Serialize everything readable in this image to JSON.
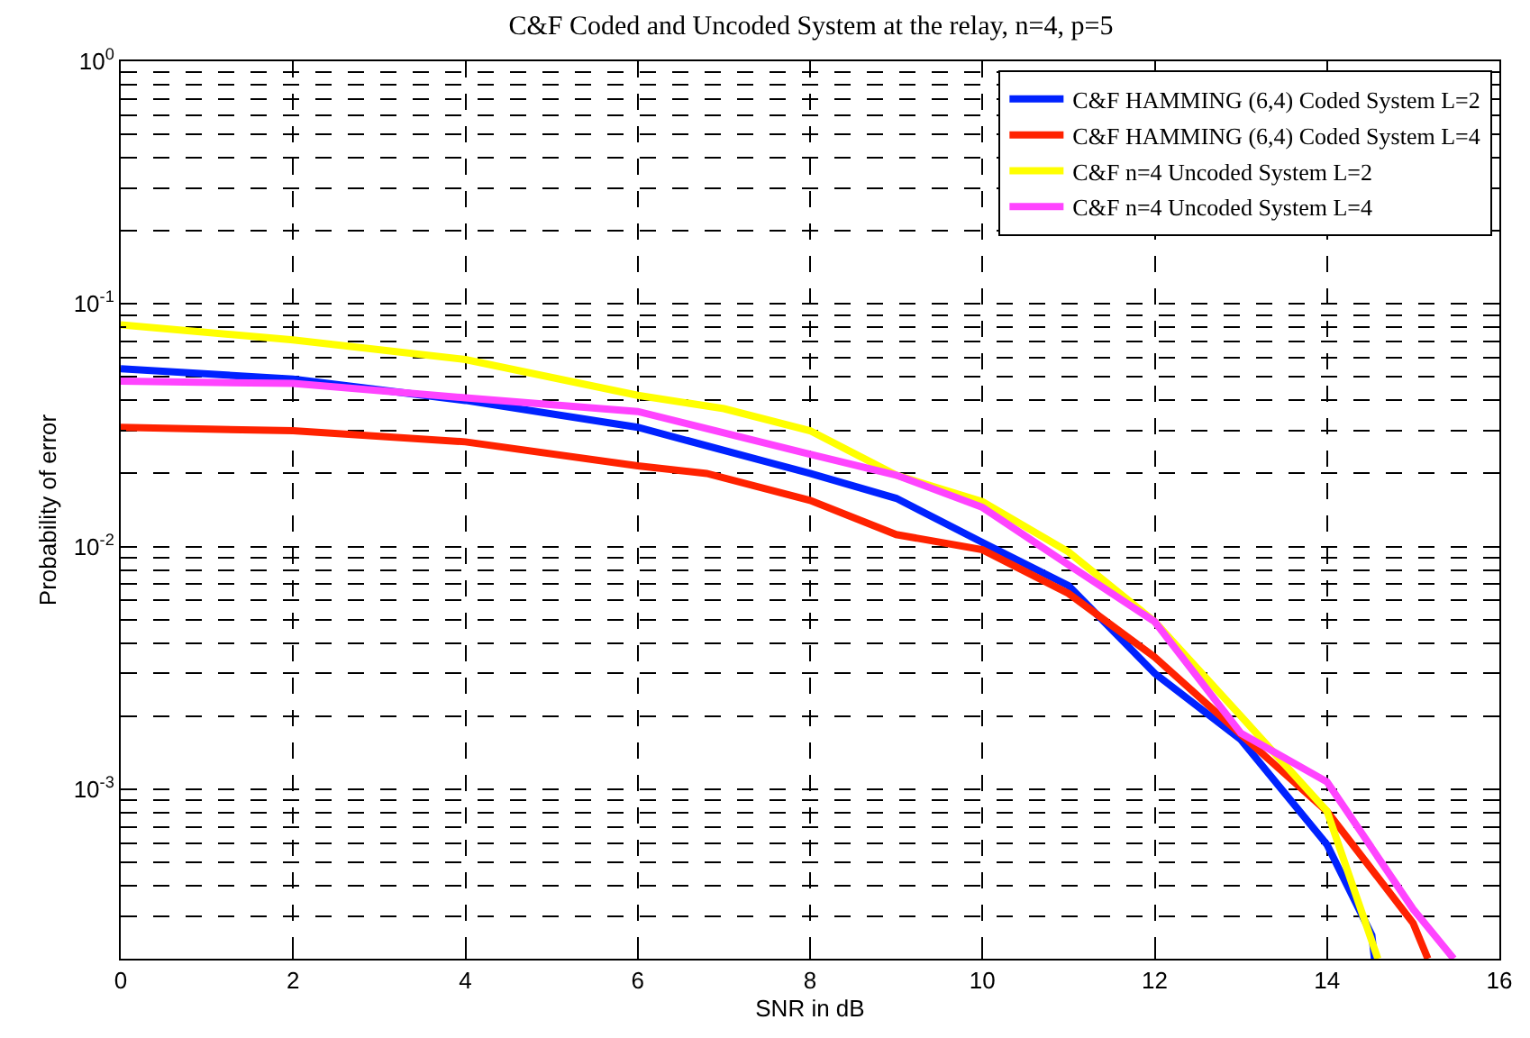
{
  "chart_data": {
    "type": "line",
    "title": "C&F Coded and Uncoded System at the relay, n=4, p=5",
    "xlabel": "SNR in dB",
    "ylabel": "Probability of error",
    "series": [
      {
        "name": "C&F HAMMING (6,4) Coded System L=2",
        "color": "#0022ff",
        "x": [
          0,
          2,
          4,
          6,
          8,
          9,
          10,
          11,
          12,
          13,
          14,
          14.52,
          14.55
        ],
        "values": [
          0.054,
          0.049,
          0.04,
          0.031,
          0.02,
          0.0158,
          0.0104,
          0.0069,
          0.003,
          0.0016,
          0.00059,
          0.00025,
          0.0002
        ]
      },
      {
        "name": "C&F HAMMING (6,4) Coded System L=4",
        "color": "#ff2200",
        "x": [
          0,
          2,
          4,
          6,
          6.8,
          8,
          9,
          10,
          11,
          12,
          13,
          14,
          15,
          15.17
        ],
        "values": [
          0.031,
          0.03,
          0.027,
          0.0215,
          0.02,
          0.0155,
          0.0112,
          0.0097,
          0.0064,
          0.0035,
          0.00168,
          0.00081,
          0.00028,
          0.0002
        ]
      },
      {
        "name": "C&F n=4 Uncoded System L=2",
        "color": "#ffff00",
        "x": [
          0,
          2,
          4,
          6,
          7,
          8,
          9,
          10,
          11,
          12,
          13,
          14,
          14.59
        ],
        "values": [
          0.082,
          0.071,
          0.059,
          0.042,
          0.037,
          0.03,
          0.0197,
          0.0153,
          0.0095,
          0.0049,
          0.002,
          0.00081,
          0.0002
        ]
      },
      {
        "name": "C&F n=4 Uncoded System L=4",
        "color": "#ff44ff",
        "x": [
          0,
          2,
          4,
          6,
          8,
          9,
          10,
          11,
          12,
          13,
          14,
          15,
          15.47
        ],
        "values": [
          0.048,
          0.047,
          0.041,
          0.036,
          0.024,
          0.0197,
          0.0145,
          0.0084,
          0.0049,
          0.0017,
          0.00107,
          0.00032,
          0.0002
        ]
      }
    ],
    "xlim": [
      0,
      16
    ],
    "xticks": [
      0,
      2,
      4,
      6,
      8,
      10,
      12,
      14,
      16
    ],
    "ylim": [
      0.0002,
      1
    ],
    "yticks": [
      {
        "value": 1,
        "label": "10$^{0}$"
      },
      {
        "value": 0.1,
        "label": "10$^{-1}$"
      },
      {
        "value": 0.01,
        "label": "10$^{-2}$"
      },
      {
        "value": 0.001,
        "label": "10$^{-3}$"
      }
    ],
    "log": "y",
    "grid": true,
    "legend": "top right",
    "line_style": "solid",
    "marker": "none"
  }
}
